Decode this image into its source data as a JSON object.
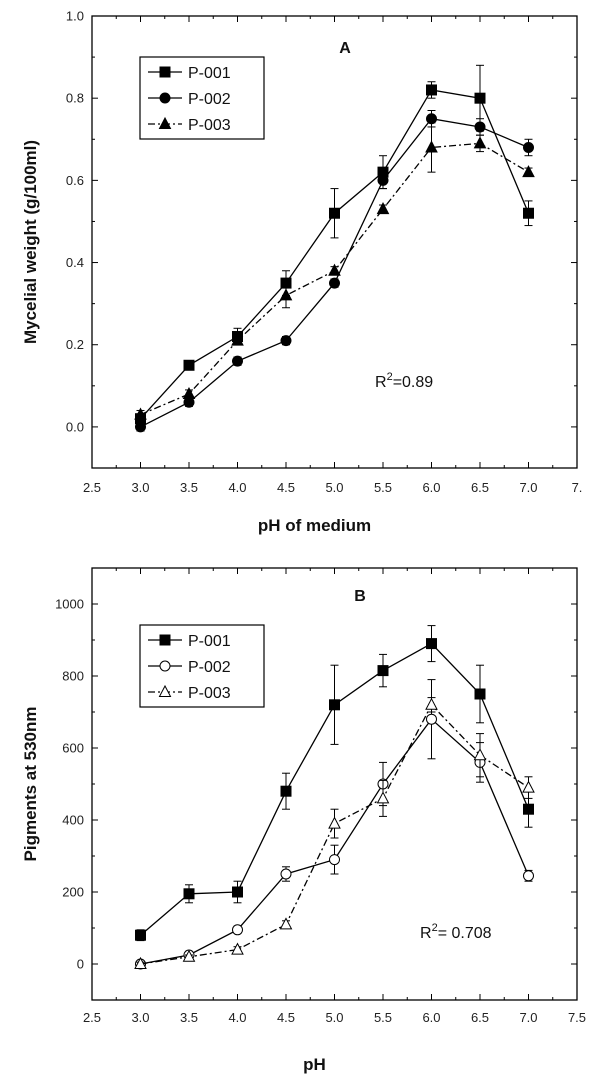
{
  "chart_data": [
    {
      "type": "line",
      "panel_label": "A",
      "xlabel": "pH of medium",
      "ylabel": "Mycelial weight (g/100ml)",
      "xlim": [
        2.5,
        7.5
      ],
      "ylim": [
        -0.1,
        1.0
      ],
      "x_ticks": [
        "2.5",
        "3.0",
        "3.5",
        "4.0",
        "4.5",
        "5.0",
        "5.5",
        "6.0",
        "6.5",
        "7.0",
        "7."
      ],
      "y_ticks": [
        "0.0",
        "0.2",
        "0.4",
        "0.6",
        "0.8",
        "1.0"
      ],
      "annotation": "=0.89",
      "annotation_prefix": "R",
      "annotation_sup": "2",
      "legend_position": "top-left",
      "x": [
        3.0,
        3.5,
        4.0,
        4.5,
        5.0,
        5.5,
        6.0,
        6.5,
        7.0
      ],
      "series": [
        {
          "name": "P-001",
          "marker": "square-filled",
          "line": "solid",
          "values": [
            0.02,
            0.15,
            0.22,
            0.35,
            0.52,
            0.62,
            0.82,
            0.8,
            0.52
          ],
          "errors": [
            0.01,
            0.01,
            0.02,
            0.03,
            0.06,
            0.04,
            0.02,
            0.08,
            0.03
          ]
        },
        {
          "name": "P-002",
          "marker": "circle-filled",
          "line": "solid",
          "values": [
            0.0,
            0.06,
            0.16,
            0.21,
            0.35,
            0.6,
            0.75,
            0.73,
            0.68
          ],
          "errors": [
            0.01,
            0.01,
            0.01,
            0.01,
            0.01,
            0.02,
            0.02,
            0.02,
            0.02
          ]
        },
        {
          "name": "P-003",
          "marker": "triangle-filled",
          "line": "dashdot",
          "values": [
            0.03,
            0.08,
            0.21,
            0.32,
            0.38,
            0.53,
            0.68,
            0.69,
            0.62
          ],
          "errors": [
            0.01,
            0.01,
            0.01,
            0.03,
            0.01,
            0.01,
            0.06,
            0.02,
            0.01
          ]
        }
      ]
    },
    {
      "type": "line",
      "panel_label": "B",
      "xlabel": "pH",
      "ylabel": "Pigments at 530nm",
      "xlim": [
        2.5,
        7.5
      ],
      "ylim": [
        -100,
        1100
      ],
      "x_ticks": [
        "2.5",
        "3.0",
        "3.5",
        "4.0",
        "4.5",
        "5.0",
        "5.5",
        "6.0",
        "6.5",
        "7.0",
        "7.5"
      ],
      "y_ticks": [
        "0",
        "200",
        "400",
        "600",
        "800",
        "1000"
      ],
      "annotation": "= 0.708",
      "annotation_prefix": "R",
      "annotation_sup": "2",
      "legend_position": "top-left",
      "x": [
        3.0,
        3.5,
        4.0,
        4.5,
        5.0,
        5.5,
        6.0,
        6.5,
        7.0
      ],
      "series": [
        {
          "name": "P-001",
          "marker": "square-filled",
          "line": "solid",
          "values": [
            80,
            195,
            200,
            480,
            720,
            815,
            890,
            750,
            430
          ],
          "errors": [
            15,
            25,
            30,
            50,
            110,
            45,
            50,
            80,
            50
          ]
        },
        {
          "name": "P-002",
          "marker": "circle-open",
          "line": "solid",
          "values": [
            0,
            25,
            95,
            250,
            290,
            500,
            680,
            560,
            245
          ],
          "errors": [
            5,
            10,
            10,
            20,
            40,
            60,
            110,
            55,
            15
          ]
        },
        {
          "name": "P-003",
          "marker": "triangle-open",
          "line": "dashdot",
          "values": [
            0,
            20,
            40,
            110,
            390,
            460,
            720,
            580,
            490
          ],
          "errors": [
            5,
            5,
            8,
            10,
            40,
            50,
            20,
            60,
            30
          ]
        }
      ]
    }
  ]
}
